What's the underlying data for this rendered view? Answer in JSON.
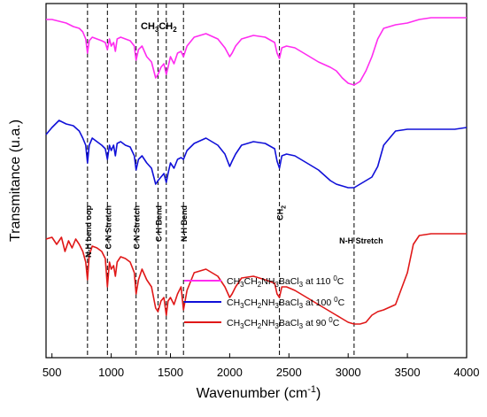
{
  "chart_data": {
    "type": "line",
    "ylabel": "Transmitance (u.a.)",
    "xlabel": "Wavenumber (cm",
    "xlabel_sup": "-1",
    "xlabel_end": ")",
    "xlim": [
      450,
      4000
    ],
    "ylim": [
      0,
      1
    ],
    "xticks": [
      500,
      1000,
      1500,
      2000,
      2500,
      3000,
      3500,
      4000
    ],
    "grid": false,
    "legend_position": "lower-right",
    "colors": {
      "magenta": "#ff2cf0",
      "blue": "#1010d8",
      "red": "#e01818"
    },
    "series": [
      {
        "name": "CH3CH2NH3BaCl3  at 110 0C",
        "label_main": "CH",
        "label_parts": [
          "3",
          "CH",
          "2",
          "NH",
          "3",
          "BaCl",
          "3",
          "  at 110 ",
          "0",
          "C"
        ],
        "color": "#ff2cf0",
        "x": [
          450,
          500,
          560,
          620,
          680,
          730,
          760,
          785,
          800,
          815,
          840,
          880,
          920,
          950,
          968,
          985,
          1000,
          1020,
          1035,
          1050,
          1080,
          1120,
          1160,
          1195,
          1210,
          1230,
          1260,
          1300,
          1340,
          1375,
          1395,
          1420,
          1445,
          1465,
          1480,
          1500,
          1530,
          1560,
          1590,
          1610,
          1640,
          1700,
          1800,
          1900,
          1960,
          2000,
          2020,
          2050,
          2100,
          2200,
          2300,
          2380,
          2400,
          2420,
          2440,
          2480,
          2550,
          2650,
          2750,
          2850,
          2900,
          2950,
          3000,
          3050,
          3100,
          3150,
          3200,
          3250,
          3300,
          3400,
          3500,
          3600,
          3700,
          3800,
          3900,
          4000
        ],
        "values": [
          0.955,
          0.955,
          0.95,
          0.945,
          0.935,
          0.93,
          0.92,
          0.9,
          0.86,
          0.895,
          0.905,
          0.9,
          0.895,
          0.89,
          0.87,
          0.9,
          0.88,
          0.89,
          0.865,
          0.9,
          0.905,
          0.9,
          0.895,
          0.88,
          0.84,
          0.87,
          0.88,
          0.85,
          0.835,
          0.79,
          0.8,
          0.82,
          0.83,
          0.8,
          0.82,
          0.85,
          0.83,
          0.86,
          0.865,
          0.85,
          0.88,
          0.905,
          0.915,
          0.9,
          0.875,
          0.85,
          0.86,
          0.88,
          0.9,
          0.91,
          0.905,
          0.89,
          0.86,
          0.845,
          0.875,
          0.88,
          0.875,
          0.855,
          0.835,
          0.82,
          0.81,
          0.79,
          0.775,
          0.77,
          0.78,
          0.81,
          0.85,
          0.9,
          0.93,
          0.94,
          0.945,
          0.955,
          0.96,
          0.96,
          0.96,
          0.96
        ]
      },
      {
        "name": "CH3CH2NH3BaCl3  at 100 0C",
        "label_parts": [
          "3",
          "CH",
          "2",
          "NH",
          "3",
          "BaCl",
          "3",
          "  at 100 ",
          "0",
          "C"
        ],
        "color": "#1010d8",
        "x": [
          450,
          500,
          560,
          620,
          680,
          730,
          760,
          785,
          800,
          815,
          840,
          880,
          920,
          950,
          968,
          985,
          1000,
          1020,
          1035,
          1050,
          1080,
          1120,
          1160,
          1195,
          1210,
          1230,
          1260,
          1300,
          1340,
          1375,
          1395,
          1420,
          1445,
          1465,
          1480,
          1500,
          1530,
          1560,
          1590,
          1610,
          1640,
          1700,
          1800,
          1900,
          1960,
          2000,
          2020,
          2050,
          2100,
          2200,
          2300,
          2380,
          2400,
          2420,
          2440,
          2480,
          2550,
          2650,
          2750,
          2850,
          2900,
          2950,
          3000,
          3050,
          3100,
          3150,
          3200,
          3250,
          3300,
          3400,
          3500,
          3600,
          3700,
          3800,
          3900,
          4000
        ],
        "values": [
          0.63,
          0.65,
          0.67,
          0.66,
          0.655,
          0.64,
          0.62,
          0.6,
          0.55,
          0.6,
          0.62,
          0.61,
          0.6,
          0.59,
          0.56,
          0.6,
          0.585,
          0.6,
          0.57,
          0.605,
          0.61,
          0.6,
          0.595,
          0.57,
          0.53,
          0.56,
          0.57,
          0.55,
          0.535,
          0.49,
          0.5,
          0.51,
          0.52,
          0.495,
          0.52,
          0.55,
          0.535,
          0.56,
          0.565,
          0.56,
          0.585,
          0.605,
          0.62,
          0.6,
          0.575,
          0.54,
          0.555,
          0.575,
          0.6,
          0.61,
          0.605,
          0.59,
          0.555,
          0.535,
          0.57,
          0.575,
          0.57,
          0.55,
          0.53,
          0.5,
          0.49,
          0.485,
          0.48,
          0.48,
          0.49,
          0.5,
          0.51,
          0.54,
          0.6,
          0.64,
          0.645,
          0.645,
          0.645,
          0.645,
          0.645,
          0.65
        ]
      },
      {
        "name": "CH3CH2NH3BaCl3  at 90 0C",
        "label_parts": [
          "3",
          "CH",
          "2",
          "NH",
          "3",
          "BaCl",
          "3",
          "  at 90 ",
          "0",
          "C"
        ],
        "color": "#e01818",
        "x": [
          450,
          500,
          540,
          580,
          610,
          640,
          670,
          700,
          730,
          760,
          785,
          800,
          815,
          840,
          880,
          920,
          950,
          968,
          985,
          1000,
          1020,
          1035,
          1050,
          1080,
          1120,
          1160,
          1195,
          1210,
          1230,
          1260,
          1300,
          1340,
          1375,
          1395,
          1420,
          1445,
          1465,
          1480,
          1500,
          1530,
          1560,
          1590,
          1610,
          1640,
          1700,
          1800,
          1900,
          1960,
          2000,
          2020,
          2050,
          2100,
          2200,
          2300,
          2380,
          2400,
          2420,
          2440,
          2480,
          2550,
          2650,
          2750,
          2850,
          2900,
          2950,
          3000,
          3050,
          3100,
          3150,
          3200,
          3250,
          3300,
          3400,
          3500,
          3550,
          3600,
          3700,
          3800,
          3900,
          4000
        ],
        "values": [
          0.335,
          0.34,
          0.32,
          0.34,
          0.3,
          0.33,
          0.31,
          0.335,
          0.32,
          0.3,
          0.27,
          0.22,
          0.29,
          0.315,
          0.31,
          0.3,
          0.28,
          0.2,
          0.27,
          0.25,
          0.26,
          0.23,
          0.27,
          0.285,
          0.28,
          0.27,
          0.24,
          0.18,
          0.22,
          0.25,
          0.22,
          0.2,
          0.14,
          0.13,
          0.16,
          0.17,
          0.12,
          0.16,
          0.17,
          0.15,
          0.18,
          0.2,
          0.135,
          0.19,
          0.24,
          0.25,
          0.23,
          0.2,
          0.17,
          0.18,
          0.2,
          0.225,
          0.23,
          0.22,
          0.21,
          0.18,
          0.17,
          0.2,
          0.2,
          0.19,
          0.17,
          0.15,
          0.13,
          0.12,
          0.11,
          0.1,
          0.095,
          0.095,
          0.1,
          0.12,
          0.13,
          0.135,
          0.15,
          0.24,
          0.32,
          0.345,
          0.35,
          0.35,
          0.35,
          0.35
        ]
      }
    ],
    "vlines": [
      {
        "x": 800,
        "label": "N-H bend oop"
      },
      {
        "x": 968,
        "label": "C-N Stretch"
      },
      {
        "x": 1210,
        "label": "C-N Stretch"
      },
      {
        "x": 1395,
        "label": "C-H Bend"
      },
      {
        "x": 1465,
        "label": ""
      },
      {
        "x": 1610,
        "label": "N-H Bend"
      },
      {
        "x": 2420,
        "label": "CH",
        "label_sub": "2"
      },
      {
        "x": 3050,
        "label": "N-H Stretch"
      }
    ],
    "top_annotation": {
      "parts": [
        "CH",
        "3",
        "CH",
        "2"
      ]
    }
  }
}
